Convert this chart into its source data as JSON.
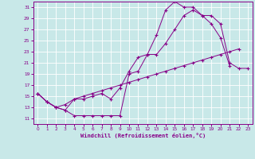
{
  "xlabel": "Windchill (Refroidissement éolien,°C)",
  "xlim": [
    -0.5,
    23.5
  ],
  "ylim": [
    10,
    32
  ],
  "xticks": [
    0,
    1,
    2,
    3,
    4,
    5,
    6,
    7,
    8,
    9,
    10,
    11,
    12,
    13,
    14,
    15,
    16,
    17,
    18,
    19,
    20,
    21,
    22,
    23
  ],
  "yticks": [
    11,
    13,
    15,
    17,
    19,
    21,
    23,
    25,
    27,
    29,
    31
  ],
  "background_color": "#c8e8e8",
  "grid_color": "#ffffff",
  "line_color": "#880088",
  "line1_x": [
    0,
    1,
    2,
    3,
    4,
    5,
    6,
    7,
    8,
    9,
    10,
    11,
    12,
    13,
    14,
    15,
    16,
    17,
    18,
    19,
    20,
    21
  ],
  "line1_y": [
    15.5,
    14.0,
    13.0,
    12.5,
    11.5,
    11.5,
    11.5,
    11.5,
    11.5,
    11.5,
    19.0,
    19.5,
    22.5,
    26.0,
    30.5,
    32.0,
    31.0,
    31.0,
    29.5,
    28.0,
    25.5,
    20.5
  ],
  "line2_x": [
    0,
    1,
    2,
    3,
    4,
    5,
    6,
    7,
    8,
    9,
    10,
    11,
    12,
    13,
    14,
    15,
    16,
    17,
    18,
    19,
    20,
    21,
    22,
    23
  ],
  "line2_y": [
    15.5,
    14.0,
    13.0,
    12.5,
    14.5,
    14.5,
    15.0,
    15.5,
    14.5,
    16.5,
    19.5,
    22.0,
    22.5,
    22.5,
    24.5,
    27.0,
    29.5,
    30.5,
    29.5,
    29.5,
    28.0,
    21.0,
    20.0,
    20.0
  ],
  "line3_x": [
    0,
    1,
    2,
    3,
    4,
    5,
    6,
    7,
    8,
    9,
    10,
    11,
    12,
    13,
    14,
    15,
    16,
    17,
    18,
    19,
    20,
    21,
    22,
    23
  ],
  "line3_y": [
    15.5,
    14.0,
    13.0,
    13.5,
    14.5,
    15.0,
    15.5,
    16.0,
    16.5,
    17.0,
    17.5,
    18.0,
    18.5,
    19.0,
    19.5,
    20.0,
    20.5,
    21.0,
    21.5,
    22.0,
    22.5,
    23.0,
    23.5,
    null
  ]
}
